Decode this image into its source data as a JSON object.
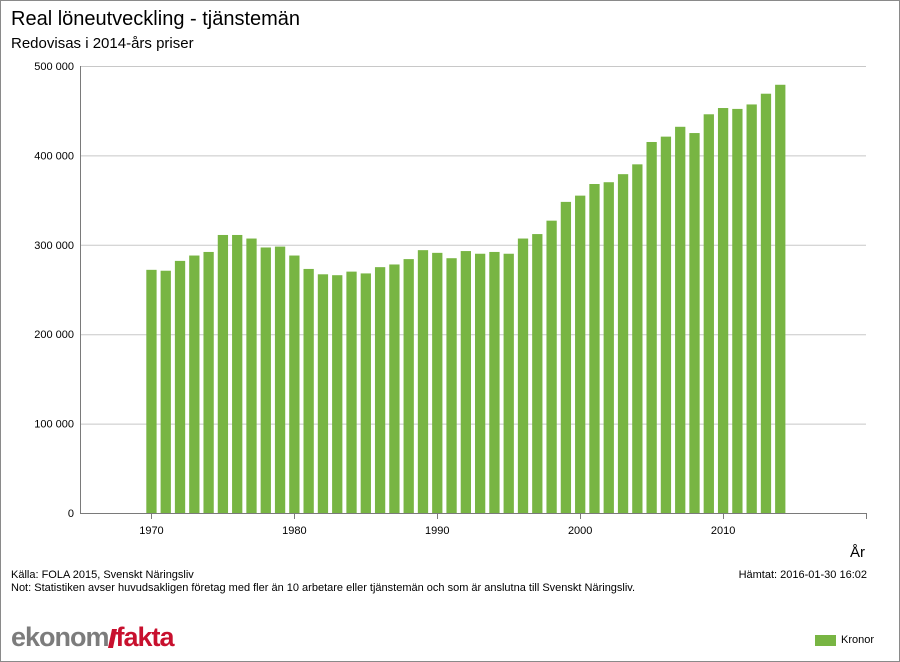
{
  "title": "Real löneutveckling - tjänstemän",
  "subtitle": "Redovisas i 2014-års priser",
  "source": "Källa: FOLA 2015, Svenskt Näringsliv",
  "note": "Not: Statistiken avser huvudsakligen företag med fler än 10 arbetare eller tjänstemän och som är anslutna till Svenskt Näringsliv.",
  "fetched": "Hämtat: 2016-01-30 16:02",
  "logo": {
    "part1": "ekonom",
    "part2": "fakta"
  },
  "colors": {
    "bar": "#78b543",
    "grid": "#c8c8c8",
    "axis": "#7a7a7a"
  },
  "chart_data": {
    "type": "bar",
    "title": "Real löneutveckling - tjänstemän",
    "subtitle": "Redovisas i 2014-års priser",
    "xlabel": "År",
    "ylabel": "",
    "ylim": [
      0,
      500000
    ],
    "xlim": [
      1965,
      2020
    ],
    "yticks": [
      0,
      100000,
      200000,
      300000,
      400000,
      500000
    ],
    "ytick_labels": [
      "0",
      "100 000",
      "200 000",
      "300 000",
      "400 000",
      "500 000"
    ],
    "xticks": [
      1970,
      1980,
      1990,
      2000,
      2010
    ],
    "xtick_labels": [
      "1970",
      "1980",
      "1990",
      "2000",
      "2010"
    ],
    "grid": true,
    "legend": "bottom-right",
    "series": [
      {
        "name": "Kronor",
        "color": "#78b543",
        "x": [
          1970,
          1971,
          1972,
          1973,
          1974,
          1975,
          1976,
          1977,
          1978,
          1979,
          1980,
          1981,
          1982,
          1983,
          1984,
          1985,
          1986,
          1987,
          1988,
          1989,
          1990,
          1991,
          1992,
          1993,
          1994,
          1995,
          1996,
          1997,
          1998,
          1999,
          2000,
          2001,
          2002,
          2003,
          2004,
          2005,
          2006,
          2007,
          2008,
          2009,
          2010,
          2011,
          2012,
          2013,
          2014
        ],
        "values": [
          272000,
          271000,
          282000,
          288000,
          292000,
          311000,
          311000,
          307000,
          297000,
          298000,
          288000,
          273000,
          267000,
          266000,
          270000,
          268000,
          275000,
          278000,
          284000,
          294000,
          291000,
          285000,
          293000,
          290000,
          292000,
          290000,
          307000,
          312000,
          327000,
          348000,
          355000,
          368000,
          370000,
          379000,
          390000,
          415000,
          421000,
          432000,
          425000,
          446000,
          453000,
          452000,
          457000,
          469000,
          479000
        ]
      }
    ]
  }
}
